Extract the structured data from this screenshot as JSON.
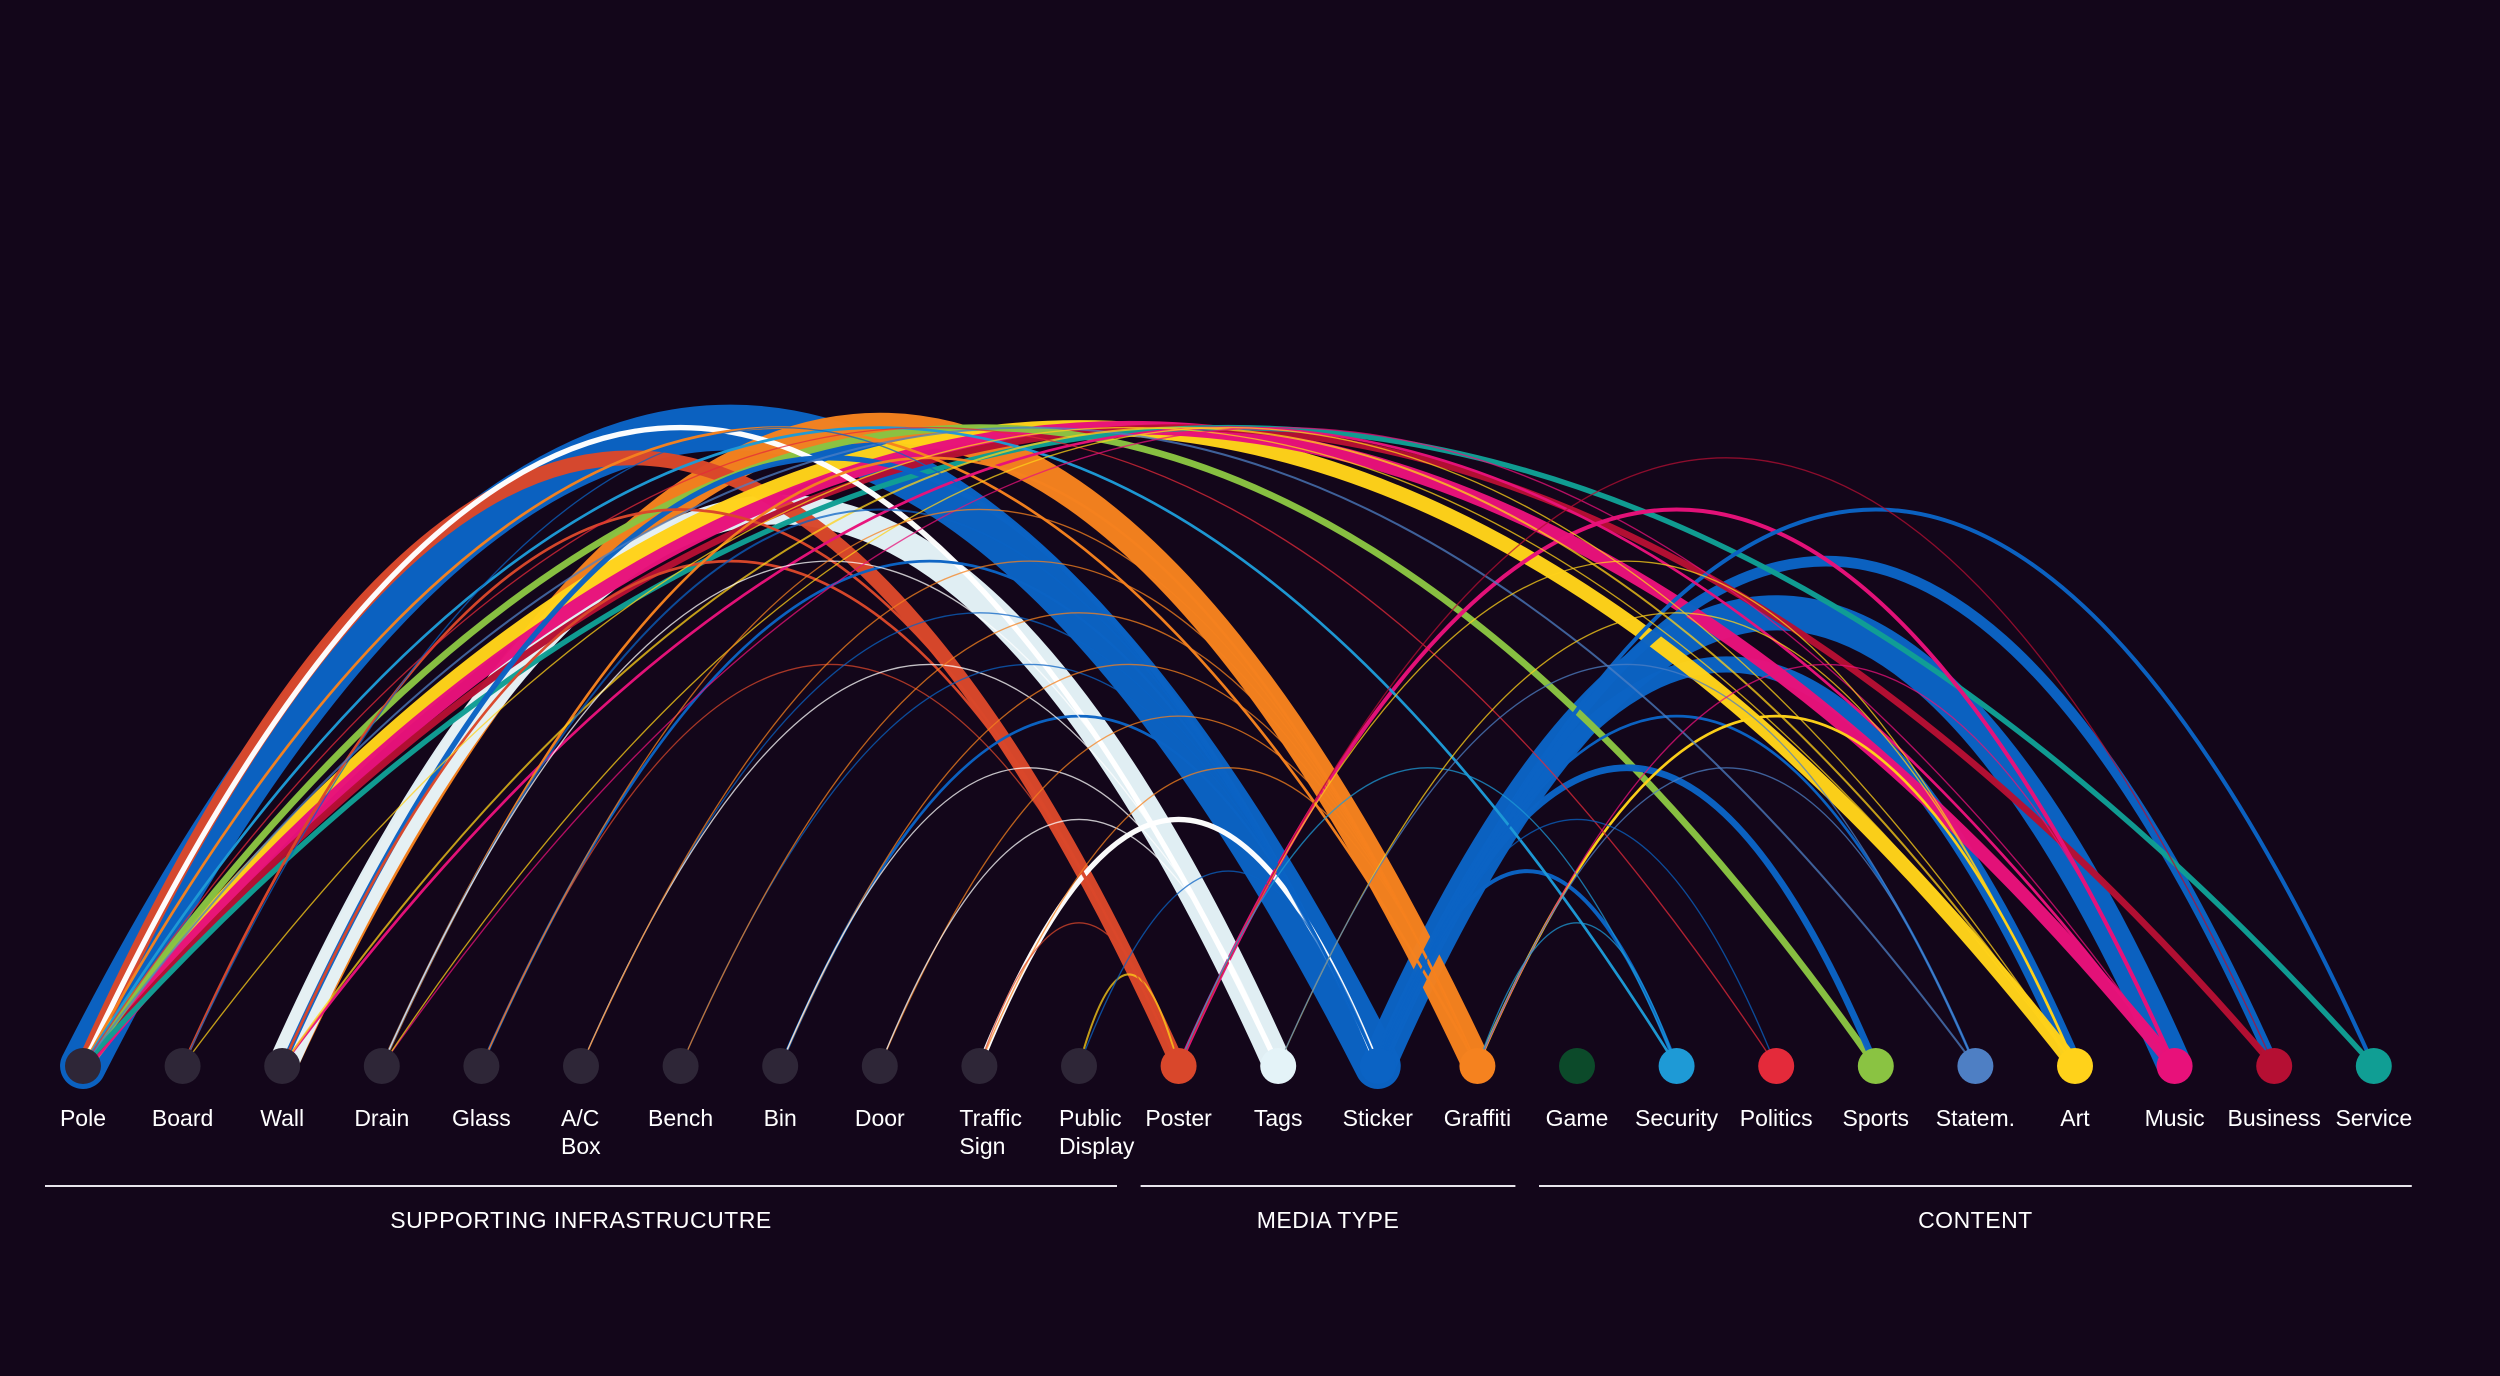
{
  "diagram": {
    "type": "arc-diagram",
    "nodes": [
      {
        "id": "pole",
        "label": "Pole",
        "color": "#2e2637"
      },
      {
        "id": "board",
        "label": "Board",
        "color": "#2e2637"
      },
      {
        "id": "wall",
        "label": "Wall",
        "color": "#2e2637"
      },
      {
        "id": "drain",
        "label": "Drain",
        "color": "#2e2637"
      },
      {
        "id": "glass",
        "label": "Glass",
        "color": "#2e2637"
      },
      {
        "id": "acbox",
        "label": "A/C\nBox",
        "color": "#2e2637"
      },
      {
        "id": "bench",
        "label": "Bench",
        "color": "#2e2637"
      },
      {
        "id": "bin",
        "label": "Bin",
        "color": "#2e2637"
      },
      {
        "id": "door",
        "label": "Door",
        "color": "#2e2637"
      },
      {
        "id": "trafficsign",
        "label": "Traffic\nSign",
        "color": "#2e2637"
      },
      {
        "id": "publicdisplay",
        "label": "Public\nDisplay",
        "color": "#2e2637"
      },
      {
        "id": "poster",
        "label": "Poster",
        "color": "#d9472b"
      },
      {
        "id": "tags",
        "label": "Tags",
        "color": "#e4f3f8"
      },
      {
        "id": "sticker",
        "label": "Sticker",
        "color": "#0b63c4"
      },
      {
        "id": "graffiti",
        "label": "Graffiti",
        "color": "#f5821f"
      },
      {
        "id": "game",
        "label": "Game",
        "color": "#0c4a2a"
      },
      {
        "id": "security",
        "label": "Security",
        "color": "#1e9ad6"
      },
      {
        "id": "politics",
        "label": "Politics",
        "color": "#e42a3a"
      },
      {
        "id": "sports",
        "label": "Sports",
        "color": "#8ac342"
      },
      {
        "id": "statem",
        "label": "Statem.",
        "color": "#4e7fc4"
      },
      {
        "id": "art",
        "label": "Art",
        "color": "#ffd21a"
      },
      {
        "id": "music",
        "label": "Music",
        "color": "#e8117a"
      },
      {
        "id": "business",
        "label": "Business",
        "color": "#b50f33"
      },
      {
        "id": "service",
        "label": "Service",
        "color": "#109e94"
      }
    ],
    "groups": [
      {
        "label": "SUPPORTING INFRASTRUCUTRE",
        "from": "pole",
        "to": "publicdisplay"
      },
      {
        "label": "MEDIA TYPE",
        "from": "poster",
        "to": "graffiti"
      },
      {
        "label": "CONTENT",
        "from": "game",
        "to": "service"
      }
    ],
    "links": [
      {
        "source": "pole",
        "target": "sticker",
        "weight": 34,
        "color": "#0b63c4"
      },
      {
        "source": "pole",
        "target": "poster",
        "weight": 11,
        "color": "#d9472b"
      },
      {
        "source": "pole",
        "target": "art",
        "weight": 11,
        "color": "#ffd21a"
      },
      {
        "source": "pole",
        "target": "business",
        "weight": 5,
        "color": "#b50f33"
      },
      {
        "source": "pole",
        "target": "music",
        "weight": 10,
        "color": "#e8117a"
      },
      {
        "source": "pole",
        "target": "sports",
        "weight": 5,
        "color": "#8ac342"
      },
      {
        "source": "pole",
        "target": "service",
        "weight": 4,
        "color": "#109e94"
      },
      {
        "source": "pole",
        "target": "tags",
        "weight": 4,
        "color": "#ffffff"
      },
      {
        "source": "pole",
        "target": "graffiti",
        "weight": 2,
        "color": "#f5821f"
      },
      {
        "source": "pole",
        "target": "security",
        "weight": 2,
        "color": "#1e9ad6"
      },
      {
        "source": "pole",
        "target": "politics",
        "weight": 1,
        "color": "#e42a3a"
      },
      {
        "source": "pole",
        "target": "statem",
        "weight": 1.5,
        "color": "#4e7fc4"
      },
      {
        "source": "board",
        "target": "poster",
        "weight": 2,
        "color": "#d9472b"
      },
      {
        "source": "board",
        "target": "art",
        "weight": 1,
        "color": "#ffd21a"
      },
      {
        "source": "board",
        "target": "sticker",
        "weight": 1,
        "color": "#0b63c4"
      },
      {
        "source": "wall",
        "target": "graffiti",
        "weight": 22,
        "color": "#f5821f"
      },
      {
        "source": "wall",
        "target": "tags",
        "weight": 22,
        "color": "#e4f3f8"
      },
      {
        "source": "wall",
        "target": "sticker",
        "weight": 4,
        "color": "#0b63c4"
      },
      {
        "source": "wall",
        "target": "poster",
        "weight": 2,
        "color": "#d9472b"
      },
      {
        "source": "wall",
        "target": "music",
        "weight": 2,
        "color": "#e8117a"
      },
      {
        "source": "wall",
        "target": "art",
        "weight": 1.5,
        "color": "#ffd21a"
      },
      {
        "source": "drain",
        "target": "graffiti",
        "weight": 2,
        "color": "#f5821f"
      },
      {
        "source": "drain",
        "target": "sticker",
        "weight": 1.5,
        "color": "#0b63c4"
      },
      {
        "source": "drain",
        "target": "tags",
        "weight": 1,
        "color": "#ffffff"
      },
      {
        "source": "drain",
        "target": "music",
        "weight": 1,
        "color": "#e8117a"
      },
      {
        "source": "drain",
        "target": "art",
        "weight": 1,
        "color": "#ffd21a"
      },
      {
        "source": "glass",
        "target": "sticker",
        "weight": 2,
        "color": "#0b63c4"
      },
      {
        "source": "glass",
        "target": "poster",
        "weight": 1,
        "color": "#d9472b"
      },
      {
        "source": "glass",
        "target": "graffiti",
        "weight": 1,
        "color": "#f5821f"
      },
      {
        "source": "acbox",
        "target": "sticker",
        "weight": 1,
        "color": "#0b63c4"
      },
      {
        "source": "acbox",
        "target": "tags",
        "weight": 1,
        "color": "#ffffff"
      },
      {
        "source": "acbox",
        "target": "graffiti",
        "weight": 1,
        "color": "#f5821f"
      },
      {
        "source": "bench",
        "target": "sticker",
        "weight": 1,
        "color": "#0b63c4"
      },
      {
        "source": "bench",
        "target": "graffiti",
        "weight": 1,
        "color": "#f5821f"
      },
      {
        "source": "bin",
        "target": "sticker",
        "weight": 2,
        "color": "#0b63c4"
      },
      {
        "source": "bin",
        "target": "graffiti",
        "weight": 1,
        "color": "#f5821f"
      },
      {
        "source": "bin",
        "target": "tags",
        "weight": 1,
        "color": "#ffffff"
      },
      {
        "source": "door",
        "target": "graffiti",
        "weight": 1,
        "color": "#f5821f"
      },
      {
        "source": "door",
        "target": "tags",
        "weight": 1,
        "color": "#ffffff"
      },
      {
        "source": "trafficsign",
        "target": "sticker",
        "weight": 4,
        "color": "#ffffff"
      },
      {
        "source": "trafficsign",
        "target": "graffiti",
        "weight": 1,
        "color": "#f5821f"
      },
      {
        "source": "trafficsign",
        "target": "poster",
        "weight": 1,
        "color": "#d9472b"
      },
      {
        "source": "publicdisplay",
        "target": "poster",
        "weight": 1.5,
        "color": "#ffd21a"
      },
      {
        "source": "publicdisplay",
        "target": "sticker",
        "weight": 1,
        "color": "#0b63c4"
      },
      {
        "source": "poster",
        "target": "music",
        "weight": 3,
        "color": "#e8117a"
      },
      {
        "source": "poster",
        "target": "art",
        "weight": 1,
        "color": "#ffd21a"
      },
      {
        "source": "poster",
        "target": "business",
        "weight": 1,
        "color": "#b50f33"
      },
      {
        "source": "poster",
        "target": "security",
        "weight": 1,
        "color": "#1e9ad6"
      },
      {
        "source": "tags",
        "target": "art",
        "weight": 1,
        "color": "#ffd21a"
      },
      {
        "source": "tags",
        "target": "statem",
        "weight": 1,
        "color": "#4e7fc4"
      },
      {
        "source": "sticker",
        "target": "art",
        "weight": 12,
        "color": "#0b63c4"
      },
      {
        "source": "sticker",
        "target": "music",
        "weight": 26,
        "color": "#0b63c4"
      },
      {
        "source": "sticker",
        "target": "business",
        "weight": 8,
        "color": "#0b63c4"
      },
      {
        "source": "sticker",
        "target": "service",
        "weight": 3,
        "color": "#0b63c4"
      },
      {
        "source": "sticker",
        "target": "sports",
        "weight": 5,
        "color": "#0b63c4"
      },
      {
        "source": "sticker",
        "target": "security",
        "weight": 3,
        "color": "#0b63c4"
      },
      {
        "source": "sticker",
        "target": "statem",
        "weight": 2,
        "color": "#0b63c4"
      },
      {
        "source": "sticker",
        "target": "politics",
        "weight": 1,
        "color": "#0b63c4"
      },
      {
        "source": "graffiti",
        "target": "art",
        "weight": 2,
        "color": "#ffd21a"
      },
      {
        "source": "graffiti",
        "target": "music",
        "weight": 1,
        "color": "#e8117a"
      },
      {
        "source": "graffiti",
        "target": "security",
        "weight": 1,
        "color": "#1e9ad6"
      },
      {
        "source": "graffiti",
        "target": "statem",
        "weight": 1,
        "color": "#4e7fc4"
      }
    ]
  }
}
